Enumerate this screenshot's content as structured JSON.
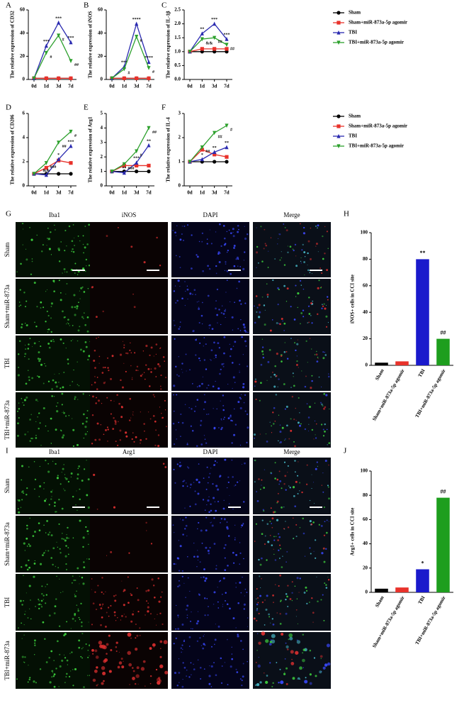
{
  "chart_data": [
    {
      "type": "line",
      "panel": "A",
      "y_label": "The relative expression of CD32",
      "categories": [
        "0d",
        "1d",
        "3d",
        "7d"
      ],
      "ylim": [
        0,
        60
      ],
      "yticks": [
        0,
        20,
        40,
        60
      ],
      "series": [
        {
          "name": "Sham",
          "color": "#000000",
          "marker": "circle",
          "values": [
            1,
            1,
            1,
            1
          ],
          "significance": [
            null,
            null,
            null,
            null
          ]
        },
        {
          "name": "Sham+miR-873a-5p agomir",
          "color": "#e8322b",
          "marker": "square",
          "values": [
            1,
            1,
            1,
            1
          ],
          "significance": [
            null,
            null,
            null,
            null
          ]
        },
        {
          "name": "TBI",
          "color": "#2a2ab0",
          "marker": "triangle-up",
          "values": [
            1,
            29,
            49,
            32
          ],
          "significance": [
            null,
            "***",
            "***",
            "***"
          ]
        },
        {
          "name": "TBI+miR-873a-5p agomir",
          "color": "#2ca02c",
          "marker": "triangle-down",
          "values": [
            1,
            23,
            38,
            16
          ],
          "significance": [
            null,
            "#",
            "#",
            "##"
          ]
        }
      ]
    },
    {
      "type": "line",
      "panel": "B",
      "y_label": "The relative expression of iNOS",
      "categories": [
        "0d",
        "1d",
        "3d",
        "7d"
      ],
      "ylim": [
        0,
        60
      ],
      "yticks": [
        0,
        20,
        40,
        60
      ],
      "series": [
        {
          "name": "Sham",
          "color": "#000000",
          "marker": "circle",
          "values": [
            1,
            1,
            1,
            1
          ],
          "significance": [
            null,
            null,
            null,
            null
          ]
        },
        {
          "name": "Sham+miR-873a-5p agomir",
          "color": "#e8322b",
          "marker": "square",
          "values": [
            1,
            1,
            1,
            1
          ],
          "significance": [
            null,
            null,
            null,
            null
          ]
        },
        {
          "name": "TBI",
          "color": "#2a2ab0",
          "marker": "triangle-up",
          "values": [
            1,
            11,
            48,
            15
          ],
          "significance": [
            null,
            "***",
            "****",
            "****"
          ]
        },
        {
          "name": "TBI+miR-873a-5p agomir",
          "color": "#2ca02c",
          "marker": "triangle-down",
          "values": [
            1,
            9,
            37,
            10
          ],
          "significance": [
            null,
            "#",
            "#",
            "#"
          ]
        }
      ]
    },
    {
      "type": "line",
      "panel": "C",
      "y_label": "The relative expression of IL-1β",
      "categories": [
        "0d",
        "1d",
        "3d",
        "7d"
      ],
      "ylim": [
        0,
        2.5
      ],
      "yticks": [
        {
          "value": 0,
          "label": "0.0"
        },
        0.5,
        {
          "value": 1,
          "label": "1.0"
        },
        1.5,
        {
          "value": 2,
          "label": "2.0"
        },
        2.5
      ],
      "legend": "right",
      "series": [
        {
          "name": "Sham",
          "color": "#000000",
          "marker": "circle",
          "values": [
            1,
            1,
            1,
            1
          ],
          "significance": [
            null,
            null,
            null,
            null
          ]
        },
        {
          "name": "Sham+miR-873a-5p agomir",
          "color": "#e8322b",
          "marker": "square",
          "values": [
            1,
            1.1,
            1.1,
            1.1
          ],
          "significance": [
            null,
            null,
            null,
            null
          ]
        },
        {
          "name": "TBI",
          "color": "#2a2ab0",
          "marker": "triangle-up",
          "values": [
            1,
            1.65,
            2,
            1.45
          ],
          "significance": [
            null,
            "**",
            "***",
            "***"
          ]
        },
        {
          "name": "TBI+miR-873a-5p agomir",
          "color": "#2ca02c",
          "marker": "triangle-down",
          "values": [
            1,
            1.45,
            1.5,
            1.25
          ],
          "significance": [
            null,
            "&&",
            "##",
            "##"
          ]
        }
      ]
    },
    {
      "type": "line",
      "panel": "D",
      "y_label": "The relative expression of CD206",
      "categories": [
        "0d",
        "1d",
        "3d",
        "7d"
      ],
      "ylim": [
        0,
        6
      ],
      "yticks": [
        0,
        2,
        4,
        6
      ],
      "series": [
        {
          "name": "Sham",
          "color": "#000000",
          "marker": "circle",
          "values": [
            1,
            1,
            1,
            1
          ],
          "significance": [
            null,
            null,
            null,
            null
          ]
        },
        {
          "name": "Sham+miR-873a-5p agomir",
          "color": "#e8322b",
          "marker": "square",
          "values": [
            1,
            1.5,
            2.1,
            1.9
          ],
          "significance": [
            null,
            null,
            null,
            null
          ]
        },
        {
          "name": "TBI",
          "color": "#2a2ab0",
          "marker": "triangle-up",
          "values": [
            1,
            0.9,
            2.2,
            3.3
          ],
          "significance": [
            null,
            "&&",
            "*",
            "***"
          ]
        },
        {
          "name": "TBI+miR-873a-5p agomir",
          "color": "#2ca02c",
          "marker": "triangle-down",
          "values": [
            1,
            1.9,
            3.6,
            4.5
          ],
          "significance": [
            null,
            "###",
            "##",
            "#"
          ]
        }
      ]
    },
    {
      "type": "line",
      "panel": "E",
      "y_label": "The relative expression of Arg1",
      "categories": [
        "0d",
        "1d",
        "3d",
        "7d"
      ],
      "ylim": [
        0,
        5
      ],
      "yticks": [
        0,
        1,
        2,
        3,
        4,
        5
      ],
      "series": [
        {
          "name": "Sham",
          "color": "#000000",
          "marker": "circle",
          "values": [
            1,
            1,
            1,
            1
          ],
          "significance": [
            null,
            null,
            null,
            null
          ]
        },
        {
          "name": "Sham+miR-873a-5p agomir",
          "color": "#e8322b",
          "marker": "square",
          "values": [
            1,
            1.4,
            1.4,
            1.4
          ],
          "significance": [
            null,
            null,
            null,
            null
          ]
        },
        {
          "name": "TBI",
          "color": "#2a2ab0",
          "marker": "triangle-up",
          "values": [
            1,
            0.9,
            1.6,
            2.8
          ],
          "significance": [
            null,
            "**",
            "***",
            "**"
          ]
        },
        {
          "name": "TBI+miR-873a-5p agomir",
          "color": "#2ca02c",
          "marker": "triangle-down",
          "values": [
            1,
            1.5,
            2.4,
            4
          ],
          "significance": [
            null,
            "###",
            "#",
            "##"
          ]
        }
      ]
    },
    {
      "type": "line",
      "panel": "F",
      "y_label": "The relative expression of IL-4",
      "categories": [
        "0d",
        "1d",
        "3d",
        "7d"
      ],
      "ylim": [
        0,
        3
      ],
      "yticks": [
        0,
        1,
        2,
        3
      ],
      "legend": "right",
      "series": [
        {
          "name": "Sham",
          "color": "#000000",
          "marker": "circle",
          "values": [
            1,
            1,
            1,
            1
          ],
          "significance": [
            null,
            null,
            null,
            null
          ]
        },
        {
          "name": "Sham+miR-873a-5p agomir",
          "color": "#e8322b",
          "marker": "square",
          "values": [
            1,
            1.5,
            1.3,
            1.2
          ],
          "significance": [
            null,
            null,
            null,
            null
          ]
        },
        {
          "name": "TBI",
          "color": "#2a2ab0",
          "marker": "triangle-up",
          "values": [
            1,
            1.1,
            1.4,
            1.6
          ],
          "significance": [
            null,
            "*",
            "**",
            "**"
          ]
        },
        {
          "name": "TBI+miR-873a-5p agomir",
          "color": "#2ca02c",
          "marker": "triangle-down",
          "values": [
            1,
            1.6,
            2.2,
            2.5
          ],
          "significance": [
            null,
            "##",
            "##",
            "#"
          ]
        }
      ]
    },
    {
      "type": "bar",
      "panel": "H",
      "y_label": "iNOS+ cells in CCI site",
      "categories": [
        "Sham",
        "Sham+miR-873a-5p agomir",
        "TBI",
        "TBI+miR-873a-5p agomir"
      ],
      "values": [
        2,
        3,
        80,
        20
      ],
      "colors": [
        "#000000",
        "#e8322b",
        "#1a1acc",
        "#1e9e1e"
      ],
      "significance": [
        null,
        null,
        "**",
        "##"
      ],
      "ylim": [
        0,
        100
      ],
      "yticks": [
        0,
        20,
        40,
        60,
        80,
        100
      ]
    },
    {
      "type": "bar",
      "panel": "J",
      "y_label": "Arg1+ cells in CCI site",
      "categories": [
        "Sham",
        "Sham+miR-873a-5p agomir",
        "TBI",
        "TBI+miR-873a-5p agomir"
      ],
      "values": [
        3,
        4,
        19,
        78
      ],
      "colors": [
        "#000000",
        "#e8322b",
        "#1a1acc",
        "#1e9e1e"
      ],
      "significance": [
        null,
        null,
        "*",
        "##"
      ],
      "ylim": [
        0,
        100
      ],
      "yticks": [
        0,
        20,
        40,
        60,
        80,
        100
      ]
    }
  ],
  "micrographs": [
    {
      "panel": "G",
      "columns": [
        "Iba1",
        "iNOS",
        "DAPI",
        "Merge"
      ],
      "rows": [
        "Sham",
        "Sham+miR-873a",
        "TBI",
        "TBI+miR-873a"
      ]
    },
    {
      "panel": "I",
      "columns": [
        "Iba1",
        "Arg1",
        "DAPI",
        "Merge"
      ],
      "rows": [
        "Sham",
        "Sham+miR-873a",
        "TBI",
        "TBI+miR-873a"
      ]
    }
  ]
}
